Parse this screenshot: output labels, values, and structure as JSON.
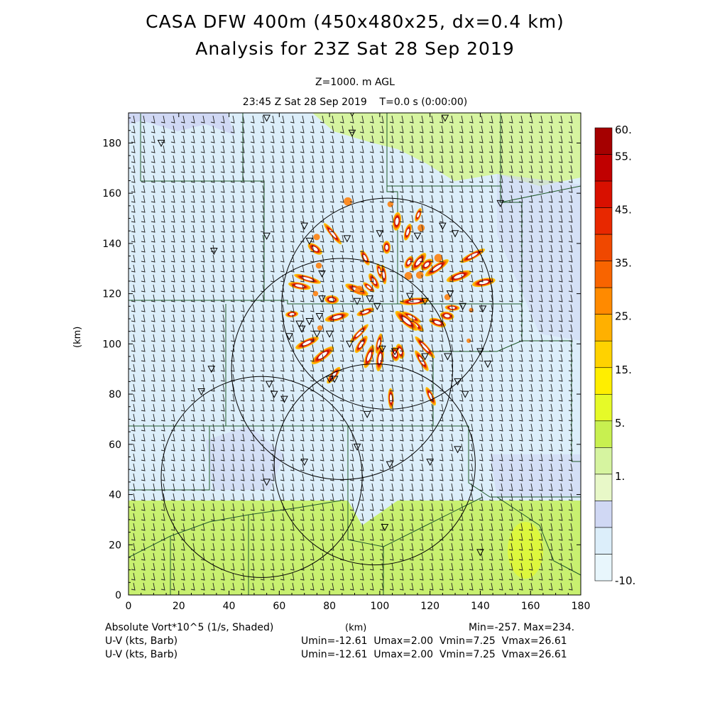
{
  "header": {
    "title_line1": "CASA DFW 400m (450x480x25, dx=0.4 km)",
    "title_line2": "Analysis for 23Z Sat 28 Sep 2019",
    "level": "Z=1000. m AGL",
    "time": "23:45 Z Sat 28 Sep 2019    T=0.0 s (0:00:00)"
  },
  "axes": {
    "x_label": "(km)",
    "y_label": "(km)",
    "x_ticks": [
      0,
      20,
      40,
      60,
      80,
      100,
      120,
      140,
      160,
      180
    ],
    "y_ticks": [
      0,
      20,
      40,
      60,
      80,
      100,
      120,
      140,
      160,
      180
    ],
    "x_range": [
      0,
      180
    ],
    "y_range": [
      0,
      192
    ]
  },
  "colorbar": {
    "labels": [
      "60.",
      "55.",
      "45.",
      "35.",
      "25.",
      "15.",
      "5.",
      "1.",
      "-10."
    ],
    "colors": [
      "#a50000",
      "#c00000",
      "#d81000",
      "#e82800",
      "#f04800",
      "#f86400",
      "#ff8a00",
      "#ffb000",
      "#ffd200",
      "#ffee00",
      "#e6fa28",
      "#c8f050",
      "#d6f4a0",
      "#e8f8c8",
      "#d0d8f4",
      "#dceefa",
      "#e8f6fc"
    ]
  },
  "radars": [
    {
      "x": 103,
      "y": 116,
      "r": 42
    },
    {
      "x": 85,
      "y": 90,
      "r": 44
    },
    {
      "x": 98,
      "y": 52,
      "r": 40
    },
    {
      "x": 53,
      "y": 47,
      "r": 40
    }
  ],
  "footer": {
    "field_name": "Absolute Vort*10^5 (1/s, Shaded)",
    "x_unit": "(km)",
    "minmax": "Min=-257. Max=234.",
    "barb_line1": "U-V (kts, Barb)",
    "barb_line2": "U-V (kts, Barb)",
    "stats_line1": "Umin=-12.61  Umax=2.00  Vmin=7.25  Vmax=26.61",
    "stats_line2": "Umin=-12.61  Umax=2.00  Vmin=7.25  Vmax=26.61"
  }
}
